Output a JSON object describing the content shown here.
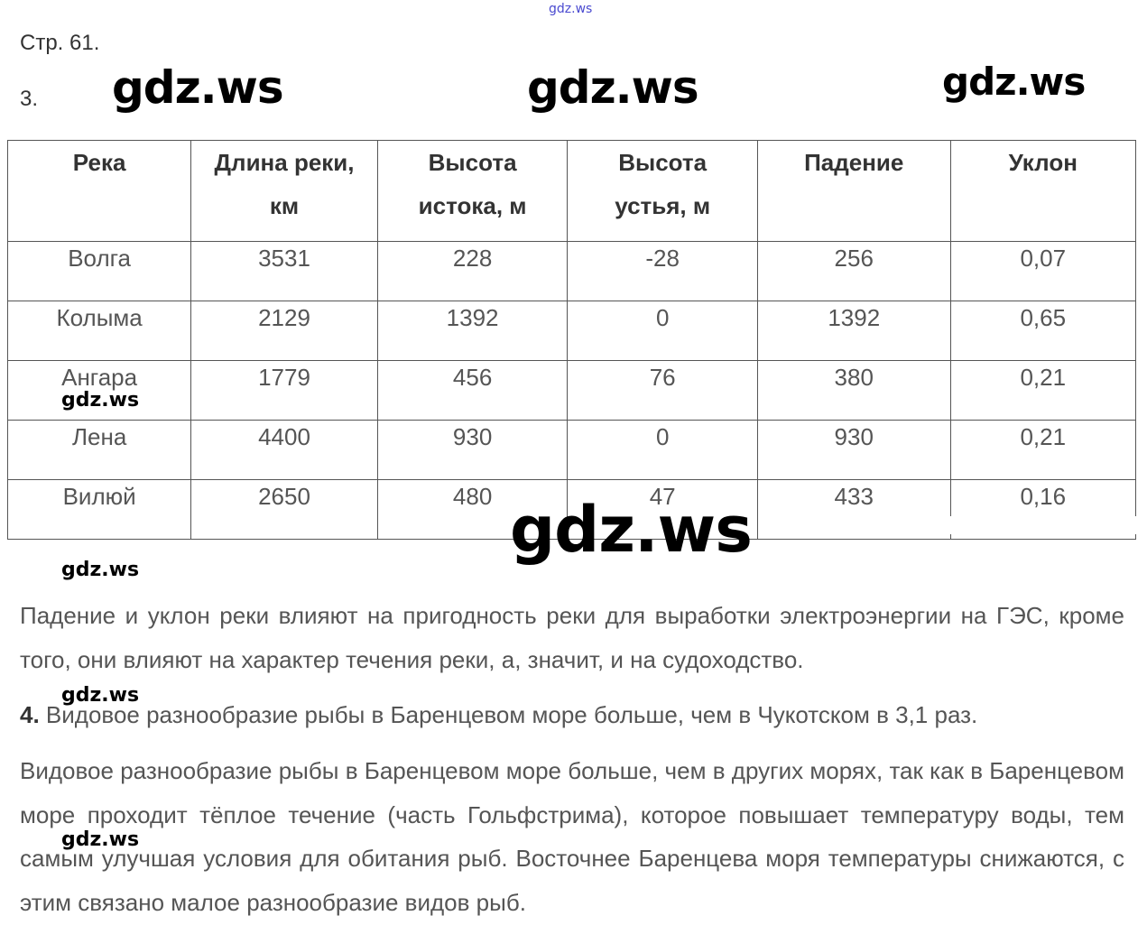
{
  "watermarks": [
    "gdz.ws",
    "gdz.ws",
    "gdz.ws",
    "gdz.ws",
    "gdz.ws",
    "gdz.ws",
    "gdz.ws",
    "gdz.ws",
    "gdz.ws"
  ],
  "page_label": "Стр. 61.",
  "task3_number": "3.",
  "table": {
    "headers": [
      "Река",
      "Длина реки, км",
      "Высота истока, м",
      "Высота устья, м",
      "Падение",
      "Уклон"
    ],
    "rows": [
      [
        "Волга",
        "3531",
        "228",
        "-28",
        "256",
        "0,07"
      ],
      [
        "Колыма",
        "2129",
        "1392",
        "0",
        "1392",
        "0,65"
      ],
      [
        "Ангара",
        "1779",
        "456",
        "76",
        "380",
        "0,21"
      ],
      [
        "Лена",
        "4400",
        "930",
        "0",
        "930",
        "0,21"
      ],
      [
        "Вилюй",
        "2650",
        "480",
        "47",
        "433",
        "0,16"
      ]
    ]
  },
  "paragraph1": "Падение и уклон реки влияют на пригодность реки для выработки электроэнергии на ГЭС, кроме того, они влияют на характер течения реки, а, значит, и на судоходство.",
  "task4_number": "4.",
  "task4_text": "Видовое разнообразие рыбы в Баренцевом море больше, чем в Чукотском в 3,1 раз.",
  "paragraph2": "Видовое разнообразие рыбы в Баренцевом море больше, чем в других морях, так как в Баренцевом море проходит тёплое течение (часть Гольфстрима), которое повышает температуру воды, тем самым улучшая условия для обитания рыб. Восточнее Баренцева моря температуры снижаются, с этим связано малое разнообразие видов рыб."
}
